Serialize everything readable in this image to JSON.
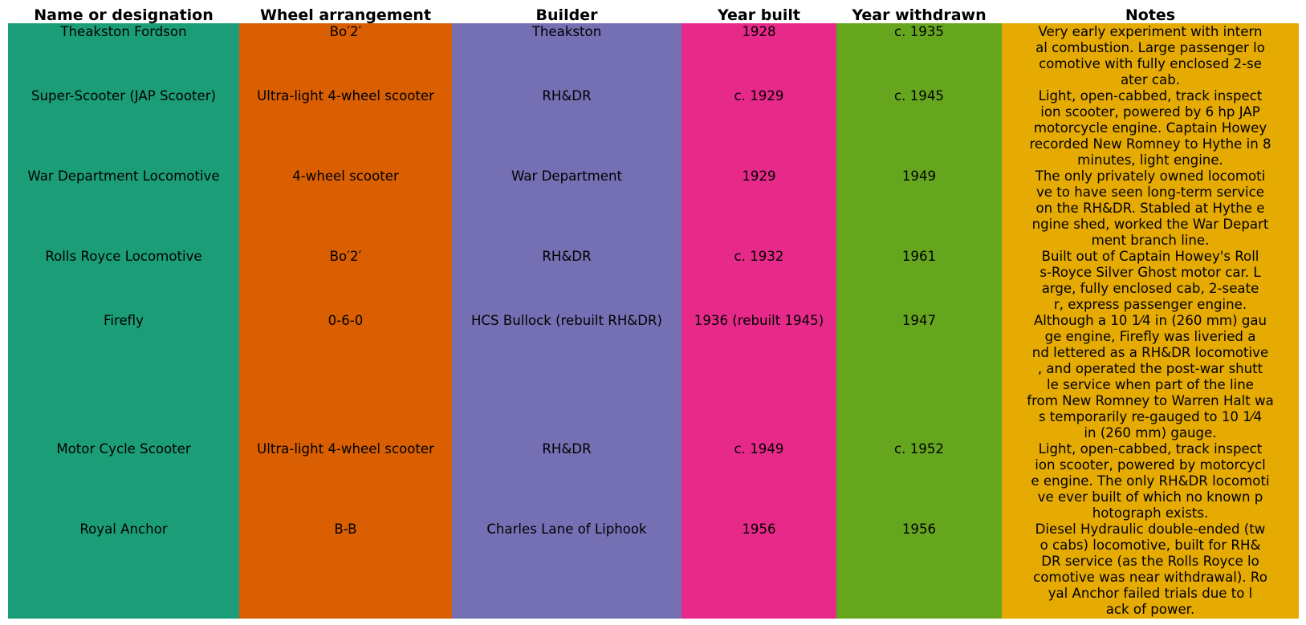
{
  "columns": [
    {
      "key": "name",
      "header": "Name or designation",
      "color": "#1b9e77"
    },
    {
      "key": "wheel",
      "header": "Wheel arrangement",
      "color": "#d95f02"
    },
    {
      "key": "builder",
      "header": "Builder",
      "color": "#7570b3"
    },
    {
      "key": "built",
      "header": "Year built",
      "color": "#e7298a"
    },
    {
      "key": "withdrawn",
      "header": "Year withdrawn",
      "color": "#66a61e"
    },
    {
      "key": "notes",
      "header": "Notes",
      "color": "#e6ab02"
    }
  ],
  "rows": [
    {
      "name": "Theakston Fordson",
      "wheel": "Bo′2′",
      "builder": "Theakston",
      "built": "1928",
      "withdrawn": "c. 1935",
      "notes": "Very early experiment with intern\nal combustion. Large passenger lo\ncomotive with fully enclosed 2-se\nater cab."
    },
    {
      "name": "Super-Scooter (JAP Scooter)",
      "wheel": "Ultra-light 4-wheel scooter",
      "builder": "RH&DR",
      "built": "c. 1929",
      "withdrawn": "c. 1945",
      "notes": "Light, open-cabbed, track inspect\nion scooter, powered by 6 hp JAP\nmotorcycle engine. Captain Howey\nrecorded New Romney to Hythe in 8\nminutes, light engine."
    },
    {
      "name": "War Department Locomotive",
      "wheel": "4-wheel scooter",
      "builder": "War Department",
      "built": "1929",
      "withdrawn": "1949",
      "notes": "The only privately owned locomoti\nve to have seen long-term service\non the RH&DR. Stabled at Hythe e\nngine shed, worked the War Depart\nment branch line."
    },
    {
      "name": "Rolls Royce Locomotive",
      "wheel": "Bo′2′",
      "builder": "RH&DR",
      "built": "c. 1932",
      "withdrawn": "1961",
      "notes": "Built out of Captain Howey's Roll\ns-Royce Silver Ghost motor car. L\narge, fully enclosed cab, 2-seate\nr, express passenger engine."
    },
    {
      "name": "Firefly",
      "wheel": "0-6-0",
      "builder": "HCS Bullock (rebuilt RH&DR)",
      "built": "1936 (rebuilt 1945)",
      "withdrawn": "1947",
      "notes": "Although a 10 1⁄4 in (260 mm) gau\nge engine, Firefly was liveried a\nnd lettered as a RH&DR locomotive\n, and operated the post-war shutt\nle service when part of the line\nfrom New Romney to Warren Halt wa\ns temporarily re-gauged to 10 1⁄4\nin (260 mm) gauge."
    },
    {
      "name": "Motor Cycle Scooter",
      "wheel": "Ultra-light 4-wheel scooter",
      "builder": "RH&DR",
      "built": "c. 1949",
      "withdrawn": "c. 1952",
      "notes": "Light, open-cabbed, track inspect\nion scooter, powered by motorcycl\ne engine. The only RH&DR locomoti\nve ever built of which no known p\nhotograph exists."
    },
    {
      "name": "Royal Anchor",
      "wheel": "B-B",
      "builder": "Charles Lane of Liphook",
      "built": "1956",
      "withdrawn": "1956",
      "notes": "Diesel Hydraulic double-ended (tw\no cabs) locomotive, built for RH&\nDR service (as the Rolls Royce lo\ncomotive was near withdrawal). Ro\nyal Anchor failed trials due to l\nack of power."
    }
  ]
}
